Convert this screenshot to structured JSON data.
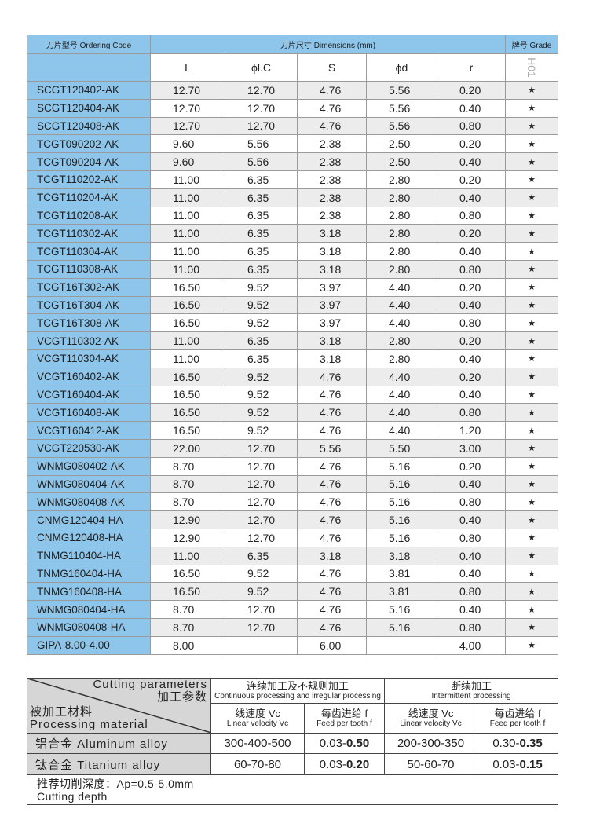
{
  "header": {
    "code": "刀片型号 Ordering Code",
    "dimensions": "刀片尺寸 Dimensions (mm)",
    "grade": "牌号 Grade",
    "cols": [
      "L",
      "ϕl.C",
      "S",
      "ϕd",
      "r"
    ],
    "grade_name": "H01"
  },
  "rows": [
    [
      "SCGT120402-AK",
      "12.70",
      "12.70",
      "4.76",
      "5.56",
      "0.20",
      "★"
    ],
    [
      "SCGT120404-AK",
      "12.70",
      "12.70",
      "4.76",
      "5.56",
      "0.40",
      "★"
    ],
    [
      "SCGT120408-AK",
      "12.70",
      "12.70",
      "4.76",
      "5.56",
      "0.80",
      "★"
    ],
    [
      "TCGT090202-AK",
      "9.60",
      "5.56",
      "2.38",
      "2.50",
      "0.20",
      "★"
    ],
    [
      "TCGT090204-AK",
      "9.60",
      "5.56",
      "2.38",
      "2.50",
      "0.40",
      "★"
    ],
    [
      "TCGT110202-AK",
      "11.00",
      "6.35",
      "2.38",
      "2.80",
      "0.20",
      "★"
    ],
    [
      "TCGT110204-AK",
      "11.00",
      "6.35",
      "2.38",
      "2.80",
      "0.40",
      "★"
    ],
    [
      "TCGT110208-AK",
      "11.00",
      "6.35",
      "2.38",
      "2.80",
      "0.80",
      "★"
    ],
    [
      "TCGT110302-AK",
      "11.00",
      "6.35",
      "3.18",
      "2.80",
      "0.20",
      "★"
    ],
    [
      "TCGT110304-AK",
      "11.00",
      "6.35",
      "3.18",
      "2.80",
      "0.40",
      "★"
    ],
    [
      "TCGT110308-AK",
      "11.00",
      "6.35",
      "3.18",
      "2.80",
      "0.80",
      "★"
    ],
    [
      "TCGT16T302-AK",
      "16.50",
      "9.52",
      "3.97",
      "4.40",
      "0.20",
      "★"
    ],
    [
      "TCGT16T304-AK",
      "16.50",
      "9.52",
      "3.97",
      "4.40",
      "0.40",
      "★"
    ],
    [
      "TCGT16T308-AK",
      "16.50",
      "9.52",
      "3.97",
      "4.40",
      "0.80",
      "★"
    ],
    [
      "VCGT110302-AK",
      "11.00",
      "6.35",
      "3.18",
      "2.80",
      "0.20",
      "★"
    ],
    [
      "VCGT110304-AK",
      "11.00",
      "6.35",
      "3.18",
      "2.80",
      "0.40",
      "★"
    ],
    [
      "VCGT160402-AK",
      "16.50",
      "9.52",
      "4.76",
      "4.40",
      "0.20",
      "★"
    ],
    [
      "VCGT160404-AK",
      "16.50",
      "9.52",
      "4.76",
      "4.40",
      "0.40",
      "★"
    ],
    [
      "VCGT160408-AK",
      "16.50",
      "9.52",
      "4.76",
      "4.40",
      "0.80",
      "★"
    ],
    [
      "VCGT160412-AK",
      "16.50",
      "9.52",
      "4.76",
      "4.40",
      "1.20",
      "★"
    ],
    [
      "VCGT220530-AK",
      "22.00",
      "12.70",
      "5.56",
      "5.50",
      "3.00",
      "★"
    ],
    [
      "WNMG080402-AK",
      "8.70",
      "12.70",
      "4.76",
      "5.16",
      "0.20",
      "★"
    ],
    [
      "WNMG080404-AK",
      "8.70",
      "12.70",
      "4.76",
      "5.16",
      "0.40",
      "★"
    ],
    [
      "WNMG080408-AK",
      "8.70",
      "12.70",
      "4.76",
      "5.16",
      "0.80",
      "★"
    ],
    [
      "CNMG120404-HA",
      "12.90",
      "12.70",
      "4.76",
      "5.16",
      "0.40",
      "★"
    ],
    [
      "CNMG120408-HA",
      "12.90",
      "12.70",
      "4.76",
      "5.16",
      "0.80",
      "★"
    ],
    [
      "TNMG110404-HA",
      "11.00",
      "6.35",
      "3.18",
      "3.18",
      "0.40",
      "★"
    ],
    [
      "TNMG160404-HA",
      "16.50",
      "9.52",
      "4.76",
      "3.81",
      "0.40",
      "★"
    ],
    [
      "TNMG160408-HA",
      "16.50",
      "9.52",
      "4.76",
      "3.81",
      "0.80",
      "★"
    ],
    [
      "WNMG080404-HA",
      "8.70",
      "12.70",
      "4.76",
      "5.16",
      "0.40",
      "★"
    ],
    [
      "WNMG080408-HA",
      "8.70",
      "12.70",
      "4.76",
      "5.16",
      "0.80",
      "★"
    ],
    [
      "GIPA-8.00-4.00",
      "8.00",
      "",
      "6.00",
      "",
      "4.00",
      "★"
    ]
  ],
  "params": {
    "corner_en": "Cutting parameters",
    "corner_cn": "加工参数",
    "material_cn": "被加工材料",
    "material_en": "Processing material",
    "continuous_cn": "连续加工及不规则加工",
    "continuous_en": "Continuous processing and irregular processing",
    "intermittent_cn": "断续加工",
    "intermittent_en": "Intermittent processing",
    "vc_cn": "线速度 Vc",
    "vc_en": "Linear velocity Vc",
    "f_cn": "每齿进给 f",
    "f_en": "Feed per tooth f",
    "rows": [
      {
        "material": "铝合金 Aluminum alloy",
        "c_vc": "300-400-500",
        "c_f_a": "0.03-",
        "c_f_b": "0.50",
        "i_vc": "200-300-350",
        "i_f_a": "0.30-",
        "i_f_b": "0.35"
      },
      {
        "material": "钛合金 Titanium alloy",
        "c_vc": "60-70-80",
        "c_f_a": "0.03-",
        "c_f_b": "0.20",
        "i_vc": "50-60-70",
        "i_f_a": "0.03-",
        "i_f_b": "0.15"
      }
    ],
    "depth_cn": "推荐切削深度：Ap=0.5-5.0mm",
    "depth_en": "Cutting depth"
  }
}
